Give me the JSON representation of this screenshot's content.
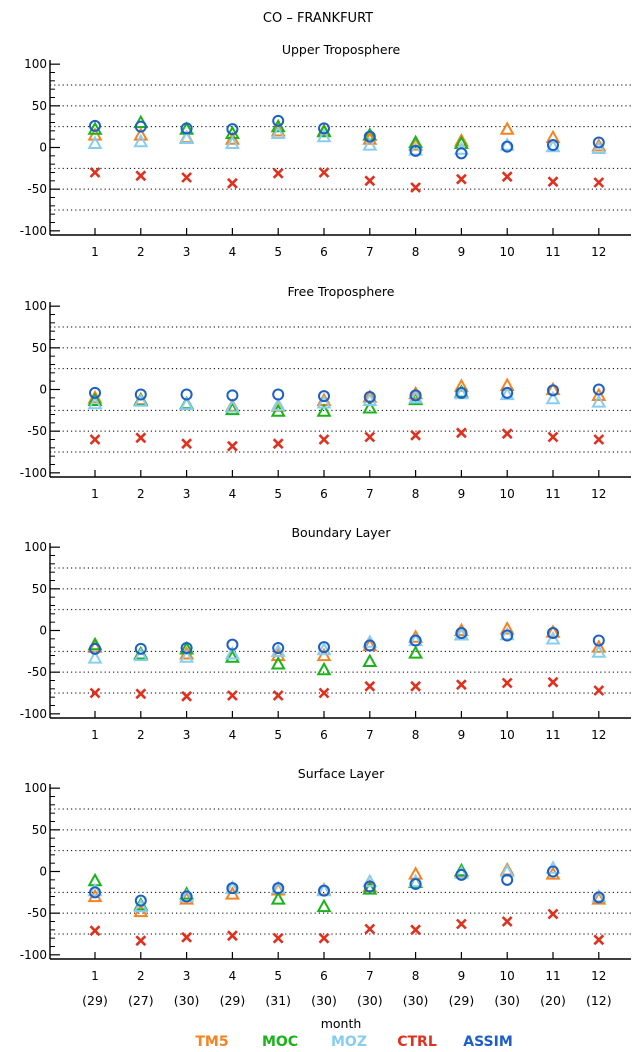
{
  "title": "CO – FRANKFURT",
  "xlabel": "month",
  "counts": [
    "(29)",
    "(27)",
    "(30)",
    "(29)",
    "(31)",
    "(30)",
    "(30)",
    "(30)",
    "(29)",
    "(30)",
    "(20)",
    "(12)"
  ],
  "legend": [
    {
      "name": "TM5",
      "color": "#f5831f"
    },
    {
      "name": "MOC",
      "color": "#18b418"
    },
    {
      "name": "MOZ",
      "color": "#87cdf0"
    },
    {
      "name": "CTRL",
      "color": "#e0301e"
    },
    {
      "name": "ASSIM",
      "color": "#1d5fc8"
    }
  ],
  "chart_data": [
    {
      "type": "scatter",
      "title": "Upper Troposphere",
      "categories": [
        "1",
        "2",
        "3",
        "4",
        "5",
        "6",
        "7",
        "8",
        "9",
        "10",
        "11",
        "12"
      ],
      "ylim": [
        -105,
        105
      ],
      "yticks": [
        "100",
        "50",
        "0",
        "-50",
        "-100"
      ],
      "grid_lines_y": [
        75,
        50,
        25,
        -25,
        -50,
        -75
      ],
      "series": [
        {
          "name": "TM5",
          "marker": "triangle",
          "values": [
            15,
            15,
            12,
            10,
            20,
            20,
            10,
            3,
            8,
            22,
            12,
            2
          ]
        },
        {
          "name": "MOC",
          "marker": "triangle",
          "values": [
            22,
            30,
            22,
            17,
            25,
            19,
            15,
            6,
            5,
            null,
            null,
            null
          ]
        },
        {
          "name": "MOZ",
          "marker": "triangle",
          "values": [
            5,
            7,
            11,
            5,
            17,
            13,
            3,
            -3,
            -2,
            3,
            1,
            -1
          ]
        },
        {
          "name": "CTRL",
          "marker": "x",
          "values": [
            -30,
            -34,
            -36,
            -43,
            -31,
            -30,
            -40,
            -48,
            -38,
            -35,
            -41,
            -42
          ]
        },
        {
          "name": "ASSIM",
          "marker": "circle",
          "values": [
            26,
            25,
            23,
            22,
            32,
            23,
            13,
            -4,
            -7,
            1,
            3,
            6
          ]
        }
      ]
    },
    {
      "type": "scatter",
      "title": "Free Troposphere",
      "categories": [
        "1",
        "2",
        "3",
        "4",
        "5",
        "6",
        "7",
        "8",
        "9",
        "10",
        "11",
        "12"
      ],
      "ylim": [
        -105,
        105
      ],
      "yticks": [
        "100",
        "50",
        "0",
        "-50",
        "-100"
      ],
      "grid_lines_y": [
        75,
        50,
        25,
        -25,
        -50,
        -75
      ],
      "series": [
        {
          "name": "TM5",
          "marker": "triangle",
          "values": [
            -10,
            -12,
            -18,
            -20,
            -20,
            -13,
            -9,
            -5,
            4,
            5,
            0,
            -7
          ]
        },
        {
          "name": "MOC",
          "marker": "triangle",
          "values": [
            -13,
            -13,
            -17,
            -24,
            -26,
            -26,
            -22,
            -12,
            -3,
            null,
            null,
            null
          ]
        },
        {
          "name": "MOZ",
          "marker": "triangle",
          "values": [
            -17,
            -14,
            -18,
            -21,
            -19,
            -16,
            -13,
            -10,
            -5,
            -6,
            -11,
            -15
          ]
        },
        {
          "name": "CTRL",
          "marker": "x",
          "values": [
            -60,
            -58,
            -65,
            -68,
            -65,
            -60,
            -57,
            -55,
            -52,
            -53,
            -57,
            -60
          ]
        },
        {
          "name": "ASSIM",
          "marker": "circle",
          "values": [
            -4,
            -6,
            -6,
            -7,
            -6,
            -8,
            -9,
            -7,
            -4,
            -4,
            -1,
            0
          ]
        }
      ]
    },
    {
      "type": "scatter",
      "title": "Boundary Layer",
      "categories": [
        "1",
        "2",
        "3",
        "4",
        "5",
        "6",
        "7",
        "8",
        "9",
        "10",
        "11",
        "12"
      ],
      "ylim": [
        -105,
        105
      ],
      "yticks": [
        "100",
        "50",
        "0",
        "-50",
        "-100"
      ],
      "grid_lines_y": [
        75,
        50,
        25,
        -25,
        -50,
        -75
      ],
      "series": [
        {
          "name": "TM5",
          "marker": "triangle",
          "values": [
            -20,
            -28,
            -28,
            -28,
            -30,
            -30,
            -18,
            -8,
            0,
            2,
            -2,
            -20
          ]
        },
        {
          "name": "MOC",
          "marker": "triangle",
          "values": [
            -17,
            -28,
            -22,
            -32,
            -40,
            -47,
            -37,
            -27,
            -5,
            null,
            null,
            null
          ]
        },
        {
          "name": "MOZ",
          "marker": "triangle",
          "values": [
            -33,
            -30,
            -32,
            -28,
            -25,
            -23,
            -14,
            -12,
            -5,
            -5,
            -10,
            -26
          ]
        },
        {
          "name": "CTRL",
          "marker": "x",
          "values": [
            -75,
            -76,
            -79,
            -78,
            -78,
            -75,
            -67,
            -67,
            -65,
            -63,
            -62,
            -72
          ]
        },
        {
          "name": "ASSIM",
          "marker": "circle",
          "values": [
            -22,
            -22,
            -21,
            -17,
            -21,
            -20,
            -18,
            -12,
            -3,
            -6,
            -3,
            -12
          ]
        }
      ]
    },
    {
      "type": "scatter",
      "title": "Surface Layer",
      "categories": [
        "1",
        "2",
        "3",
        "4",
        "5",
        "6",
        "7",
        "8",
        "9",
        "10",
        "11",
        "12"
      ],
      "ylim": [
        -105,
        105
      ],
      "yticks": [
        "100",
        "50",
        "0",
        "-50",
        "-100"
      ],
      "grid_lines_y": [
        75,
        50,
        25,
        -25,
        -50,
        -75
      ],
      "series": [
        {
          "name": "TM5",
          "marker": "triangle",
          "values": [
            -30,
            -48,
            -33,
            -27,
            -22,
            -22,
            -18,
            -3,
            0,
            2,
            -3,
            -33
          ]
        },
        {
          "name": "MOC",
          "marker": "triangle",
          "values": [
            -11,
            -40,
            -27,
            -20,
            -33,
            -42,
            -21,
            -13,
            1,
            null,
            null,
            null
          ]
        },
        {
          "name": "MOZ",
          "marker": "triangle",
          "values": [
            -23,
            -42,
            -30,
            -20,
            -20,
            -23,
            -12,
            -12,
            -2,
            0,
            4,
            -30
          ]
        },
        {
          "name": "CTRL",
          "marker": "x",
          "values": [
            -71,
            -83,
            -79,
            -77,
            -80,
            -80,
            -69,
            -70,
            -63,
            -60,
            -51,
            -82
          ]
        },
        {
          "name": "ASSIM",
          "marker": "circle",
          "values": [
            -25,
            -35,
            -30,
            -20,
            -20,
            -23,
            -18,
            -15,
            -4,
            -10,
            0,
            -31
          ]
        }
      ]
    }
  ]
}
